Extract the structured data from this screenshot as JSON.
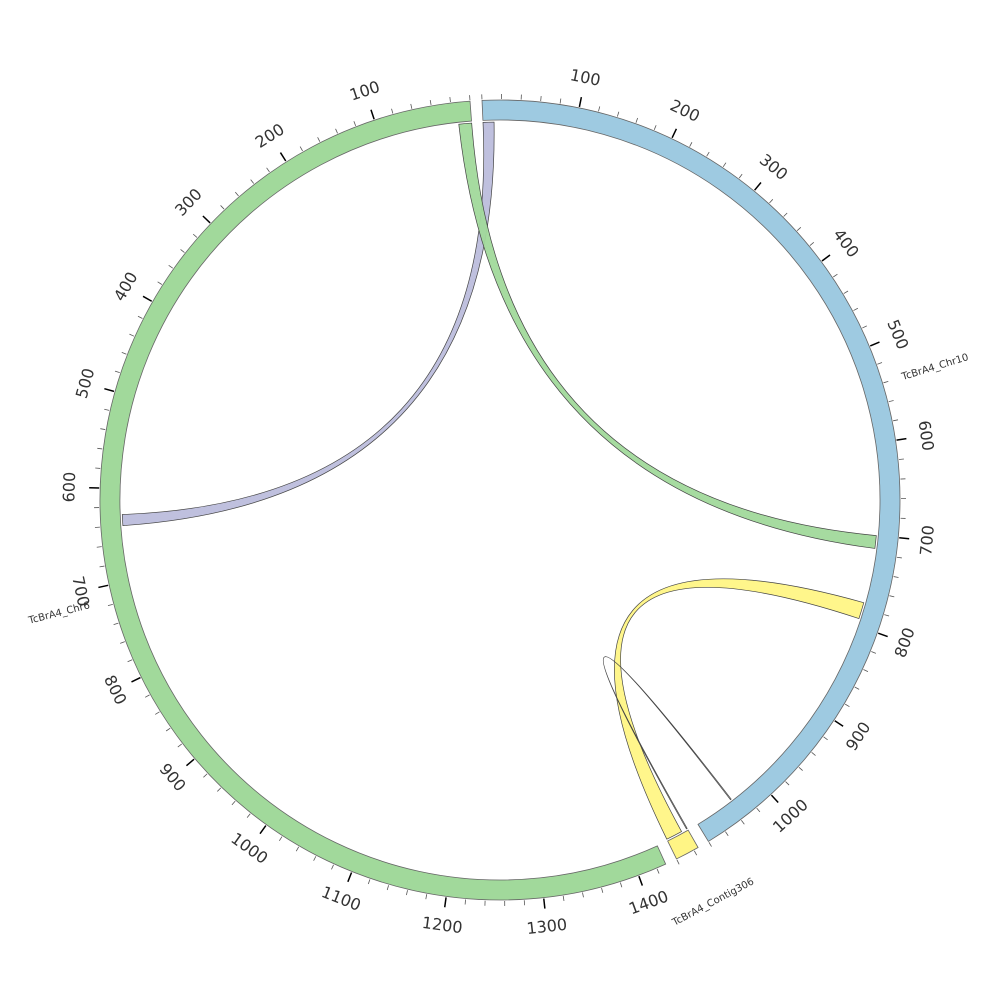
{
  "chart_data": {
    "type": "chord",
    "title": "",
    "segments": [
      {
        "name": "TcBrA4_Chr10",
        "length": 1080,
        "color": "#9ecae1",
        "tick_labels": [
          "100",
          "200",
          "300",
          "400",
          "500",
          "600",
          "700",
          "800",
          "900",
          "1000"
        ]
      },
      {
        "name": "TcBrA4_Contig306",
        "length": 25,
        "color": "#fff585",
        "tick_labels": []
      },
      {
        "name": "TcBrA4_Chr6",
        "length": 1430,
        "color": "#a1d99b",
        "tick_labels": [
          "100",
          "200",
          "300",
          "400",
          "500",
          "600",
          "700",
          "800",
          "900",
          "1000",
          "1100",
          "1200",
          "1300",
          "1400"
        ]
      }
    ],
    "links": [
      {
        "from": {
          "segment": "TcBrA4_Chr10",
          "start": 0,
          "end": 12
        },
        "to": {
          "segment": "TcBrA4_Chr6",
          "start": 628,
          "end": 640
        },
        "color": "#bcbddc"
      },
      {
        "from": {
          "segment": "TcBrA4_Chr10",
          "start": 700,
          "end": 714
        },
        "to": {
          "segment": "TcBrA4_Chr6",
          "start": 0,
          "end": 14
        },
        "color": "#a1d99b"
      },
      {
        "from": {
          "segment": "TcBrA4_Chr10",
          "start": 774,
          "end": 792
        },
        "to": {
          "segment": "TcBrA4_Contig306",
          "start": 0,
          "end": 18
        },
        "color": "#fff585"
      },
      {
        "from": {
          "segment": "TcBrA4_Chr10",
          "start": 1035,
          "end": 1036
        },
        "to": {
          "segment": "TcBrA4_Contig306",
          "start": 24,
          "end": 25
        },
        "color": "#ffffff"
      }
    ],
    "axes": {
      "tick_interval": 20,
      "major_tick_interval": 100
    },
    "grid": false,
    "legend": "none"
  }
}
